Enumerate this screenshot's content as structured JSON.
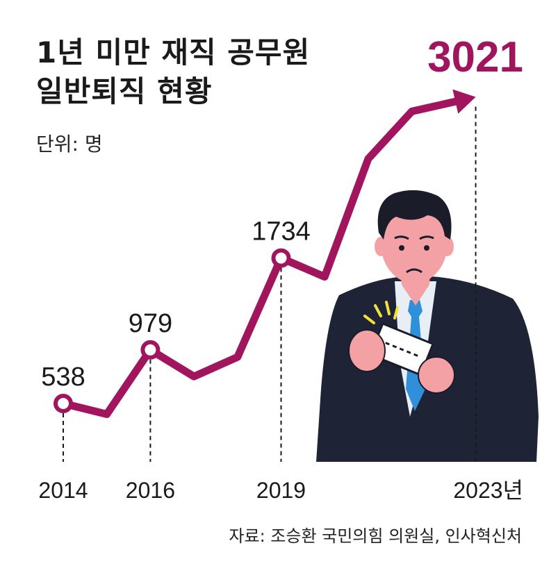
{
  "title_lines": [
    "1년 미만 재직 공무원",
    "일반퇴직 현황"
  ],
  "unit": "단위: 명",
  "source": "자료: 조승환 국민의힘 의원실, 인사혁신처",
  "colors": {
    "line": "#a0155e",
    "highlight": "#a0155e",
    "suit": "#1f2336",
    "skin": "#f4a1a5",
    "tie": "#2f8fd8"
  },
  "illustration": "worried-man-holding-resignation-envelope",
  "chart_data": {
    "type": "line",
    "title": "1년 미만 재직 공무원 일반퇴직 현황",
    "unit": "명",
    "x": [
      2014,
      2015,
      2016,
      2017,
      2018,
      2019,
      2020,
      2021,
      2022,
      2023
    ],
    "y": [
      538,
      450,
      979,
      760,
      920,
      1734,
      1580,
      2550,
      2940,
      3021
    ],
    "labeled_points": [
      {
        "x": 2014,
        "label": "538",
        "tick": "2014"
      },
      {
        "x": 2016,
        "label": "979",
        "tick": "2016"
      },
      {
        "x": 2019,
        "label": "1734",
        "tick": "2019"
      },
      {
        "x": 2023,
        "label": "3021",
        "tick": "2023년"
      }
    ],
    "ylim": [
      0,
      3200
    ],
    "grid": false,
    "legend": false
  }
}
